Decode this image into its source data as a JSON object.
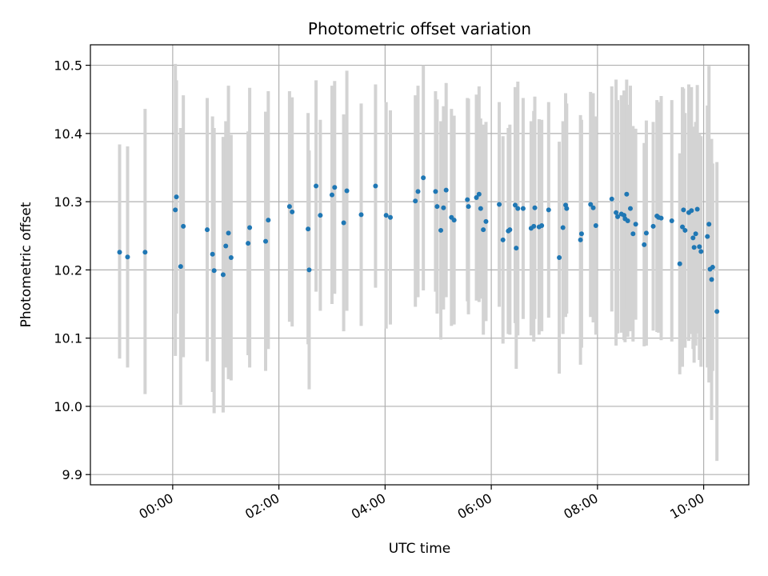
{
  "chart_data": {
    "type": "scatter",
    "title": "Photometric offset variation",
    "xlabel": "UTC time",
    "ylabel": "Photometric offset",
    "grid": true,
    "legend": "none",
    "xlim_hours": [
      -1.55,
      10.85
    ],
    "ylim": [
      9.885,
      10.53
    ],
    "x_ticks": [
      {
        "value": 0,
        "label": "00:00"
      },
      {
        "value": 2,
        "label": "02:00"
      },
      {
        "value": 4,
        "label": "04:00"
      },
      {
        "value": 6,
        "label": "06:00"
      },
      {
        "value": 8,
        "label": "08:00"
      },
      {
        "value": 10,
        "label": "10:00"
      }
    ],
    "y_ticks": [
      {
        "value": 9.9,
        "label": "9.9"
      },
      {
        "value": 10.0,
        "label": "10.0"
      },
      {
        "value": 10.1,
        "label": "10.1"
      },
      {
        "value": 10.2,
        "label": "10.2"
      },
      {
        "value": 10.3,
        "label": "10.3"
      },
      {
        "value": 10.4,
        "label": "10.4"
      },
      {
        "value": 10.5,
        "label": "10.5"
      }
    ],
    "colors": {
      "marker": "#1f77b4",
      "errorbar": "#d3d3d3",
      "grid": "#b0b0b0"
    },
    "series": [
      {
        "name": "offset",
        "x_hours": [
          -1.0,
          -0.85,
          -0.52,
          0.05,
          0.07,
          0.15,
          0.2,
          0.65,
          0.75,
          0.78,
          0.95,
          1.0,
          1.05,
          1.1,
          1.42,
          1.45,
          1.75,
          1.8,
          2.2,
          2.25,
          2.55,
          2.57,
          2.7,
          2.78,
          3.0,
          3.05,
          3.22,
          3.28,
          3.55,
          3.82,
          4.02,
          4.1,
          4.57,
          4.62,
          4.72,
          4.95,
          4.98,
          5.05,
          5.1,
          5.15,
          5.25,
          5.3,
          5.55,
          5.57,
          5.72,
          5.77,
          5.8,
          5.85,
          5.9,
          6.15,
          6.22,
          6.32,
          6.35,
          6.45,
          6.47,
          6.5,
          6.6,
          6.75,
          6.8,
          6.82,
          6.9,
          6.95,
          7.08,
          7.28,
          7.35,
          7.4,
          7.42,
          7.68,
          7.7,
          7.87,
          7.92,
          7.97,
          8.27,
          8.35,
          8.38,
          8.45,
          8.5,
          8.52,
          8.55,
          8.57,
          8.62,
          8.67,
          8.72,
          8.88,
          8.92,
          9.05,
          9.12,
          9.15,
          9.2,
          9.4,
          9.55,
          9.6,
          9.62,
          9.65,
          9.72,
          9.77,
          9.8,
          9.82,
          9.85,
          9.88,
          9.92,
          9.95,
          10.07,
          10.1,
          10.12,
          10.15,
          10.17,
          10.25
        ],
        "y_values": [
          10.226,
          10.219,
          10.226,
          10.288,
          10.307,
          10.205,
          10.264,
          10.259,
          10.223,
          10.199,
          10.193,
          10.235,
          10.254,
          10.218,
          10.239,
          10.262,
          10.242,
          10.273,
          10.293,
          10.285,
          10.26,
          10.2,
          10.323,
          10.28,
          10.31,
          10.321,
          10.269,
          10.316,
          10.281,
          10.323,
          10.28,
          10.277,
          10.301,
          10.315,
          10.335,
          10.315,
          10.293,
          10.258,
          10.291,
          10.317,
          10.277,
          10.273,
          10.303,
          10.293,
          10.306,
          10.311,
          10.29,
          10.259,
          10.271,
          10.296,
          10.244,
          10.257,
          10.259,
          10.295,
          10.232,
          10.29,
          10.29,
          10.261,
          10.264,
          10.291,
          10.263,
          10.265,
          10.288,
          10.218,
          10.262,
          10.295,
          10.29,
          10.244,
          10.253,
          10.296,
          10.291,
          10.265,
          10.304,
          10.284,
          10.278,
          10.282,
          10.28,
          10.275,
          10.311,
          10.272,
          10.29,
          10.253,
          10.267,
          10.237,
          10.254,
          10.264,
          10.279,
          10.277,
          10.276,
          10.272,
          10.209,
          10.263,
          10.288,
          10.258,
          10.284,
          10.287,
          10.247,
          10.233,
          10.253,
          10.289,
          10.234,
          10.227,
          10.249,
          10.267,
          10.201,
          10.186,
          10.204,
          10.139
        ],
        "y_low": [
          10.07,
          10.057,
          10.018,
          10.074,
          10.136,
          10.002,
          10.072,
          10.066,
          10.021,
          9.99,
          9.991,
          10.057,
          10.04,
          10.038,
          10.075,
          10.057,
          10.052,
          10.084,
          10.124,
          10.117,
          10.091,
          10.025,
          10.168,
          10.14,
          10.15,
          10.165,
          10.11,
          10.14,
          10.118,
          10.174,
          10.114,
          10.12,
          10.146,
          10.16,
          10.17,
          10.168,
          10.136,
          10.098,
          10.142,
          10.16,
          10.118,
          10.12,
          10.154,
          10.135,
          10.155,
          10.153,
          10.158,
          10.105,
          10.125,
          10.146,
          10.092,
          10.106,
          10.105,
          10.122,
          10.055,
          10.104,
          10.128,
          10.104,
          10.095,
          10.128,
          10.105,
          10.11,
          10.13,
          10.048,
          10.106,
          10.131,
          10.136,
          10.061,
          10.086,
          10.131,
          10.123,
          10.105,
          10.139,
          10.089,
          10.107,
          10.108,
          10.097,
          10.094,
          10.143,
          10.102,
          10.11,
          10.095,
          10.127,
          10.088,
          10.089,
          10.111,
          10.109,
          10.108,
          10.097,
          10.095,
          10.047,
          10.058,
          10.11,
          10.086,
          10.096,
          10.106,
          10.084,
          10.064,
          10.089,
          10.107,
          10.068,
          10.058,
          10.057,
          10.035,
          10.044,
          9.98,
          10.052,
          9.92
        ],
        "y_high": [
          10.384,
          10.381,
          10.436,
          10.502,
          10.478,
          10.408,
          10.456,
          10.452,
          10.425,
          10.408,
          10.395,
          10.418,
          10.47,
          10.398,
          10.403,
          10.467,
          10.432,
          10.462,
          10.462,
          10.453,
          10.43,
          10.375,
          10.478,
          10.42,
          10.47,
          10.477,
          10.428,
          10.492,
          10.444,
          10.472,
          10.446,
          10.434,
          10.456,
          10.47,
          10.5,
          10.462,
          10.45,
          10.418,
          10.44,
          10.474,
          10.436,
          10.426,
          10.452,
          10.451,
          10.457,
          10.469,
          10.422,
          10.413,
          10.417,
          10.446,
          10.396,
          10.408,
          10.413,
          10.468,
          10.409,
          10.476,
          10.452,
          10.418,
          10.433,
          10.454,
          10.421,
          10.42,
          10.446,
          10.388,
          10.418,
          10.459,
          10.444,
          10.427,
          10.42,
          10.461,
          10.459,
          10.425,
          10.469,
          10.479,
          10.449,
          10.456,
          10.463,
          10.456,
          10.479,
          10.442,
          10.47,
          10.411,
          10.407,
          10.386,
          10.419,
          10.417,
          10.449,
          10.446,
          10.455,
          10.449,
          10.371,
          10.468,
          10.466,
          10.43,
          10.472,
          10.468,
          10.41,
          10.402,
          10.417,
          10.471,
          10.4,
          10.396,
          10.441,
          10.499,
          10.358,
          10.392,
          10.356,
          10.358
        ]
      }
    ]
  }
}
